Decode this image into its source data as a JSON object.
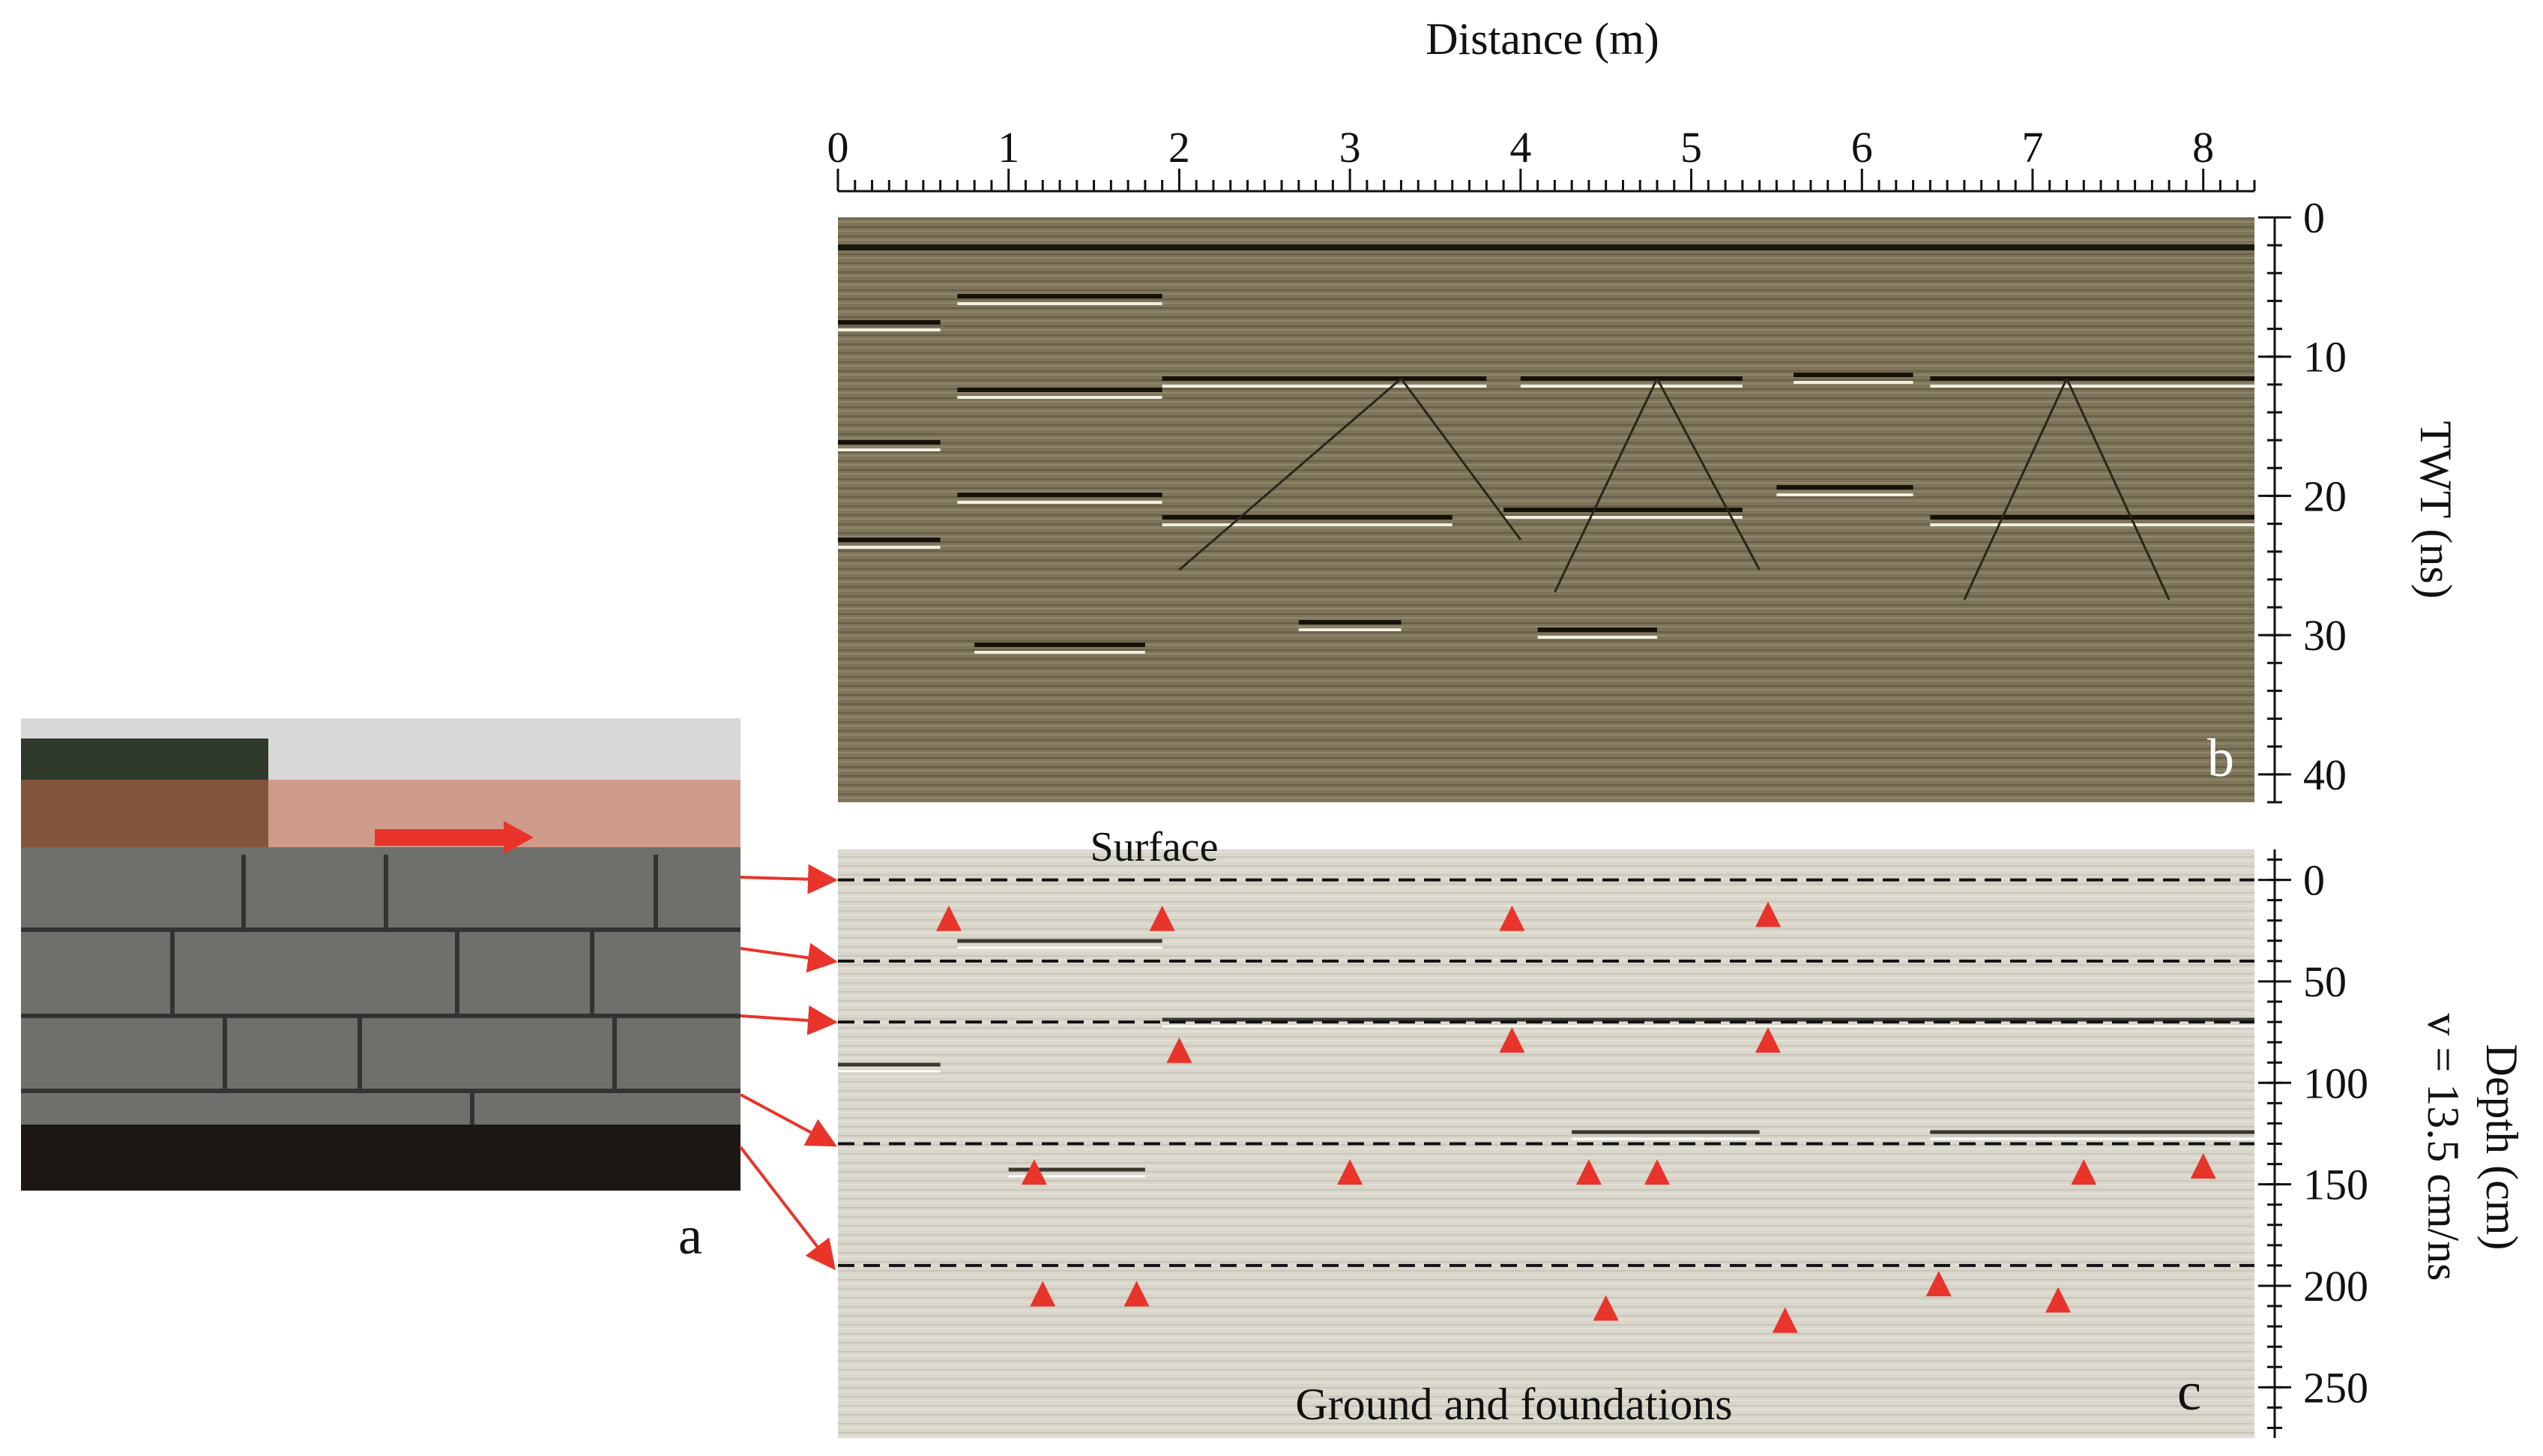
{
  "figure": {
    "distance_axis": {
      "title": "Distance (m)",
      "ticks": [
        "0",
        "1",
        "2",
        "3",
        "4",
        "5",
        "6",
        "7",
        "8"
      ],
      "range": [
        0,
        8.3
      ]
    },
    "panel_a": {
      "label": "a",
      "description_icons": [
        "photo-of-stone-wall",
        "orange-safety-fence",
        "red-direction-arrow"
      ]
    },
    "panel_b": {
      "label": "b",
      "y_axis": {
        "title": "TWT (ns)",
        "ticks": [
          "0",
          "10",
          "20",
          "30",
          "40"
        ],
        "range": [
          0,
          42
        ]
      },
      "colors": {
        "background": "#7d7459"
      }
    },
    "panel_c": {
      "label": "c",
      "y_axis": {
        "title": "Depth (cm)",
        "subtitle": "v = 13.5 cm/ns",
        "ticks": [
          "0",
          "50",
          "100",
          "150",
          "200",
          "250"
        ],
        "range": [
          -15,
          275
        ]
      },
      "annotations": {
        "top": "Surface",
        "bottom": "Ground and foundations"
      },
      "dashed_lines_depth_cm": [
        0,
        40,
        70,
        130,
        190
      ],
      "markers": [
        {
          "x": 0.65,
          "depth": 20
        },
        {
          "x": 1.9,
          "depth": 20
        },
        {
          "x": 3.95,
          "depth": 20
        },
        {
          "x": 5.45,
          "depth": 18
        },
        {
          "x": 2.0,
          "depth": 85
        },
        {
          "x": 3.95,
          "depth": 80
        },
        {
          "x": 5.45,
          "depth": 80
        },
        {
          "x": 1.15,
          "depth": 145
        },
        {
          "x": 3.0,
          "depth": 145
        },
        {
          "x": 4.4,
          "depth": 145
        },
        {
          "x": 4.8,
          "depth": 145
        },
        {
          "x": 7.3,
          "depth": 145
        },
        {
          "x": 8.0,
          "depth": 142
        },
        {
          "x": 1.2,
          "depth": 205
        },
        {
          "x": 1.75,
          "depth": 205
        },
        {
          "x": 4.5,
          "depth": 212
        },
        {
          "x": 5.55,
          "depth": 218
        },
        {
          "x": 6.45,
          "depth": 200
        },
        {
          "x": 7.15,
          "depth": 208
        }
      ],
      "colors": {
        "background": "#d9d6cb",
        "marker": "#e8342b"
      }
    },
    "arrows": {
      "color": "#e8342b",
      "count": 5
    }
  }
}
